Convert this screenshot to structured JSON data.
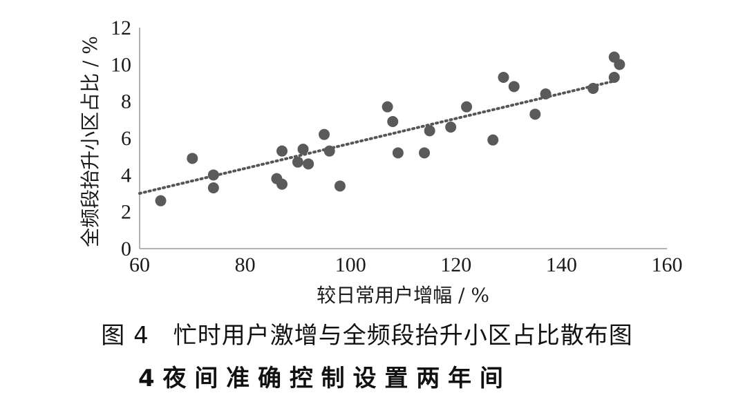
{
  "chart_data": {
    "type": "scatter",
    "xlabel": "较日常用户增幅 / %",
    "ylabel": "全频段抬升小区占比 / %",
    "xlim": [
      60,
      160
    ],
    "ylim": [
      0,
      12
    ],
    "xticks": [
      "60",
      "80",
      "100",
      "120",
      "140",
      "160"
    ],
    "yticks": [
      "0",
      "2",
      "4",
      "6",
      "8",
      "10",
      "12"
    ],
    "grid": false,
    "point_color": "#5a5a5a",
    "trendline": {
      "style": "dotted",
      "color": "#555555",
      "x": [
        60,
        150
      ],
      "y": [
        3.0,
        9.1
      ]
    },
    "points": [
      {
        "x": 64,
        "y": 2.6
      },
      {
        "x": 70,
        "y": 4.9
      },
      {
        "x": 74,
        "y": 4.0
      },
      {
        "x": 74,
        "y": 3.3
      },
      {
        "x": 86,
        "y": 3.8
      },
      {
        "x": 87,
        "y": 3.5
      },
      {
        "x": 87,
        "y": 5.3
      },
      {
        "x": 90,
        "y": 4.7
      },
      {
        "x": 91,
        "y": 5.4
      },
      {
        "x": 92,
        "y": 4.6
      },
      {
        "x": 95,
        "y": 6.2
      },
      {
        "x": 96,
        "y": 5.3
      },
      {
        "x": 98,
        "y": 3.4
      },
      {
        "x": 107,
        "y": 7.7
      },
      {
        "x": 108,
        "y": 6.9
      },
      {
        "x": 109,
        "y": 5.2
      },
      {
        "x": 114,
        "y": 5.2
      },
      {
        "x": 115,
        "y": 6.4
      },
      {
        "x": 119,
        "y": 6.6
      },
      {
        "x": 122,
        "y": 7.7
      },
      {
        "x": 127,
        "y": 5.9
      },
      {
        "x": 129,
        "y": 9.3
      },
      {
        "x": 131,
        "y": 8.8
      },
      {
        "x": 135,
        "y": 7.3
      },
      {
        "x": 137,
        "y": 8.4
      },
      {
        "x": 146,
        "y": 8.7
      },
      {
        "x": 150,
        "y": 10.4
      },
      {
        "x": 150,
        "y": 9.3
      },
      {
        "x": 151,
        "y": 10.0
      }
    ]
  },
  "caption": "图 4　忙时用户激增与全频段抬升小区占比散布图",
  "next_line": "4 夜 间 准 确 控 制 设 置 两 年 间"
}
